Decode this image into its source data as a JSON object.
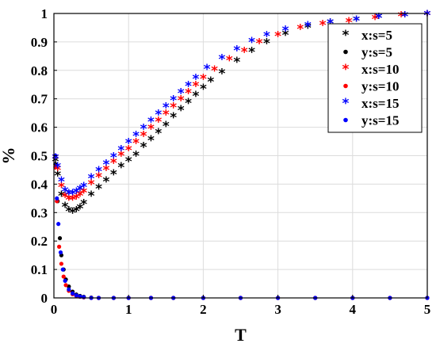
{
  "chart_data": {
    "type": "scatter",
    "xlabel": "T",
    "ylabel": "%",
    "xlim": [
      0,
      5
    ],
    "ylim": [
      0,
      1
    ],
    "xticks": [
      "0",
      "1",
      "2",
      "3",
      "4",
      "5"
    ],
    "yticks": [
      "0",
      "0.1",
      "0.2",
      "0.3",
      "0.4",
      "0.5",
      "0.6",
      "0.7",
      "0.8",
      "0.9",
      "1"
    ],
    "grid": true,
    "legend_position": "top-right",
    "series": [
      {
        "name": "x:s=5",
        "color": "#000000",
        "marker": "asterisk",
        "x": [
          0.02,
          0.05,
          0.1,
          0.15,
          0.2,
          0.25,
          0.3,
          0.35,
          0.4,
          0.5,
          0.6,
          0.7,
          0.8,
          0.9,
          1.0,
          1.1,
          1.2,
          1.3,
          1.4,
          1.5,
          1.6,
          1.7,
          1.8,
          1.9,
          2.0,
          2.1,
          2.25,
          2.45,
          2.65,
          2.85,
          3.1,
          3.4,
          3.7,
          4.05,
          4.35,
          4.7,
          5.0
        ],
        "y": [
          0.48,
          0.43,
          0.36,
          0.32,
          0.305,
          0.3,
          0.305,
          0.315,
          0.33,
          0.36,
          0.385,
          0.41,
          0.435,
          0.46,
          0.48,
          0.5,
          0.53,
          0.555,
          0.58,
          0.605,
          0.635,
          0.66,
          0.685,
          0.71,
          0.735,
          0.76,
          0.79,
          0.83,
          0.865,
          0.895,
          0.925,
          0.95,
          0.965,
          0.975,
          0.985,
          0.99,
          0.995
        ]
      },
      {
        "name": "y:s=5",
        "color": "#000000",
        "marker": "dot",
        "x": [
          0.02,
          0.05,
          0.08,
          0.1,
          0.13,
          0.16,
          0.2,
          0.25,
          0.3,
          0.35,
          0.4,
          0.5,
          0.6,
          0.8,
          1.0,
          1.3,
          1.6,
          2.0,
          2.5,
          3.0,
          3.5,
          4.0,
          4.5,
          5.0
        ],
        "y": [
          0.47,
          0.34,
          0.21,
          0.15,
          0.1,
          0.065,
          0.04,
          0.022,
          0.012,
          0.007,
          0.004,
          0.001,
          0.0,
          0.0,
          0.0,
          0.0,
          0.0,
          0.0,
          0.0,
          0.0,
          0.0,
          0.0,
          0.0,
          0.0
        ]
      },
      {
        "name": "x:s=10",
        "color": "#ff0000",
        "marker": "asterisk",
        "x": [
          0.02,
          0.05,
          0.1,
          0.15,
          0.2,
          0.25,
          0.3,
          0.35,
          0.4,
          0.5,
          0.6,
          0.7,
          0.8,
          0.9,
          1.0,
          1.1,
          1.2,
          1.3,
          1.4,
          1.5,
          1.6,
          1.7,
          1.8,
          1.9,
          2.0,
          2.15,
          2.35,
          2.55,
          2.75,
          3.0,
          3.3,
          3.6,
          3.95,
          4.3,
          4.65,
          5.0
        ],
        "y": [
          0.49,
          0.45,
          0.39,
          0.355,
          0.345,
          0.345,
          0.35,
          0.36,
          0.37,
          0.4,
          0.425,
          0.45,
          0.475,
          0.5,
          0.52,
          0.545,
          0.57,
          0.595,
          0.62,
          0.645,
          0.67,
          0.695,
          0.72,
          0.745,
          0.77,
          0.8,
          0.835,
          0.865,
          0.895,
          0.92,
          0.945,
          0.96,
          0.97,
          0.98,
          0.99,
          0.995
        ]
      },
      {
        "name": "y:s=10",
        "color": "#ff0000",
        "marker": "dot",
        "x": [
          0.02,
          0.04,
          0.07,
          0.1,
          0.13,
          0.16,
          0.2,
          0.25,
          0.3,
          0.35,
          0.4,
          0.5,
          0.6,
          0.8,
          1.0,
          1.3,
          1.6,
          2.0,
          2.5,
          3.0,
          3.5,
          4.0,
          4.5,
          5.0
        ],
        "y": [
          0.46,
          0.34,
          0.18,
          0.12,
          0.075,
          0.045,
          0.025,
          0.013,
          0.007,
          0.004,
          0.002,
          0.0,
          0.0,
          0.0,
          0.0,
          0.0,
          0.0,
          0.0,
          0.0,
          0.0,
          0.0,
          0.0,
          0.0,
          0.0
        ]
      },
      {
        "name": "x:s=15",
        "color": "#0000ff",
        "marker": "asterisk",
        "x": [
          0.02,
          0.05,
          0.1,
          0.15,
          0.2,
          0.25,
          0.3,
          0.35,
          0.4,
          0.5,
          0.6,
          0.7,
          0.8,
          0.9,
          1.0,
          1.1,
          1.2,
          1.3,
          1.4,
          1.5,
          1.6,
          1.7,
          1.8,
          1.9,
          2.05,
          2.25,
          2.45,
          2.65,
          2.85,
          3.1,
          3.4,
          3.7,
          4.05,
          4.35,
          4.7,
          5.0
        ],
        "y": [
          0.49,
          0.46,
          0.41,
          0.375,
          0.365,
          0.365,
          0.37,
          0.38,
          0.39,
          0.42,
          0.445,
          0.47,
          0.495,
          0.52,
          0.545,
          0.57,
          0.595,
          0.62,
          0.645,
          0.67,
          0.695,
          0.72,
          0.745,
          0.77,
          0.805,
          0.84,
          0.87,
          0.9,
          0.92,
          0.94,
          0.955,
          0.965,
          0.975,
          0.985,
          0.99,
          0.995
        ]
      },
      {
        "name": "y:s=15",
        "color": "#0000ff",
        "marker": "dot",
        "x": [
          0.02,
          0.04,
          0.06,
          0.09,
          0.12,
          0.15,
          0.2,
          0.25,
          0.3,
          0.35,
          0.4,
          0.5,
          0.6,
          0.8,
          1.0,
          1.3,
          1.6,
          2.0,
          2.5,
          3.0,
          3.5,
          4.0,
          4.5,
          5.0
        ],
        "y": [
          0.5,
          0.35,
          0.26,
          0.16,
          0.1,
          0.06,
          0.03,
          0.016,
          0.009,
          0.005,
          0.003,
          0.0,
          0.0,
          0.0,
          0.0,
          0.0,
          0.0,
          0.0,
          0.0,
          0.0,
          0.0,
          0.0,
          0.0,
          0.0
        ]
      }
    ]
  }
}
